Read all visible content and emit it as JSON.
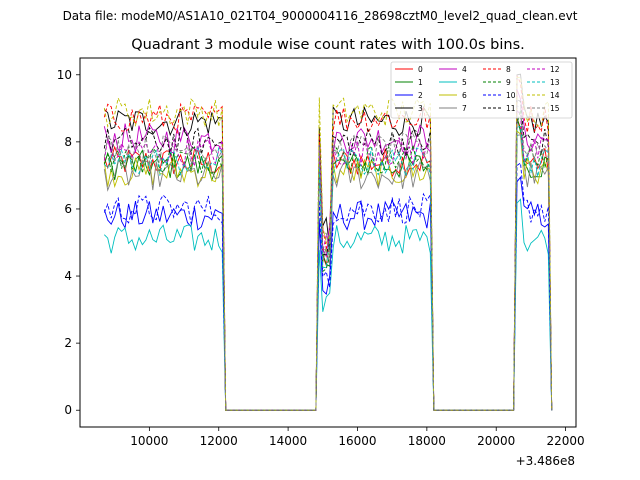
{
  "header": "Data file: modeM0/AS1A10_021T04_9000004116_28698cztM0_level2_quad_clean.evt",
  "chart_data": {
    "type": "line",
    "title": "Quadrant 3 module wise count rates with 100.0s bins.",
    "xlabel": "",
    "ylabel": "",
    "x_offset_label": "+3.486e8",
    "x_offset": 348600000,
    "xlim": [
      8000,
      22300
    ],
    "ylim": [
      -0.5,
      10.5
    ],
    "xticks": [
      10000,
      12000,
      14000,
      16000,
      18000,
      20000,
      22000
    ],
    "yticks": [
      0,
      2,
      4,
      6,
      8,
      10
    ],
    "grid": false,
    "legend_position": "top-right",
    "legend_columns": 4,
    "active_segments": [
      [
        8700,
        12150
      ],
      [
        14850,
        18100
      ],
      [
        20550,
        21550
      ]
    ],
    "series": [
      {
        "name": "0",
        "color": "#ff0000",
        "style": "solid",
        "level": 7.4
      },
      {
        "name": "1",
        "color": "#008000",
        "style": "solid",
        "level": 7.3
      },
      {
        "name": "2",
        "color": "#0000ff",
        "style": "solid",
        "level": 5.8
      },
      {
        "name": "3",
        "color": "#000000",
        "style": "solid",
        "level": 8.6
      },
      {
        "name": "4",
        "color": "#bf00bf",
        "style": "solid",
        "level": 8.1
      },
      {
        "name": "5",
        "color": "#00bfbf",
        "style": "solid",
        "level": 5.1
      },
      {
        "name": "6",
        "color": "#bfbf00",
        "style": "solid",
        "level": 7.1
      },
      {
        "name": "7",
        "color": "#808080",
        "style": "solid",
        "level": 7.0
      },
      {
        "name": "8",
        "color": "#ff0000",
        "style": "dashed",
        "level": 8.7
      },
      {
        "name": "9",
        "color": "#008000",
        "style": "dashed",
        "level": 7.5
      },
      {
        "name": "10",
        "color": "#0000ff",
        "style": "dashed",
        "level": 6.0
      },
      {
        "name": "11",
        "color": "#000000",
        "style": "dashed",
        "level": 8.0
      },
      {
        "name": "12",
        "color": "#bf00bf",
        "style": "dashed",
        "level": 7.7
      },
      {
        "name": "13",
        "color": "#00bfbf",
        "style": "dashed",
        "level": 7.4
      },
      {
        "name": "14",
        "color": "#bfbf00",
        "style": "dashed",
        "level": 8.9
      },
      {
        "name": "15",
        "color": "#808080",
        "style": "dashed",
        "level": 7.8
      }
    ]
  }
}
